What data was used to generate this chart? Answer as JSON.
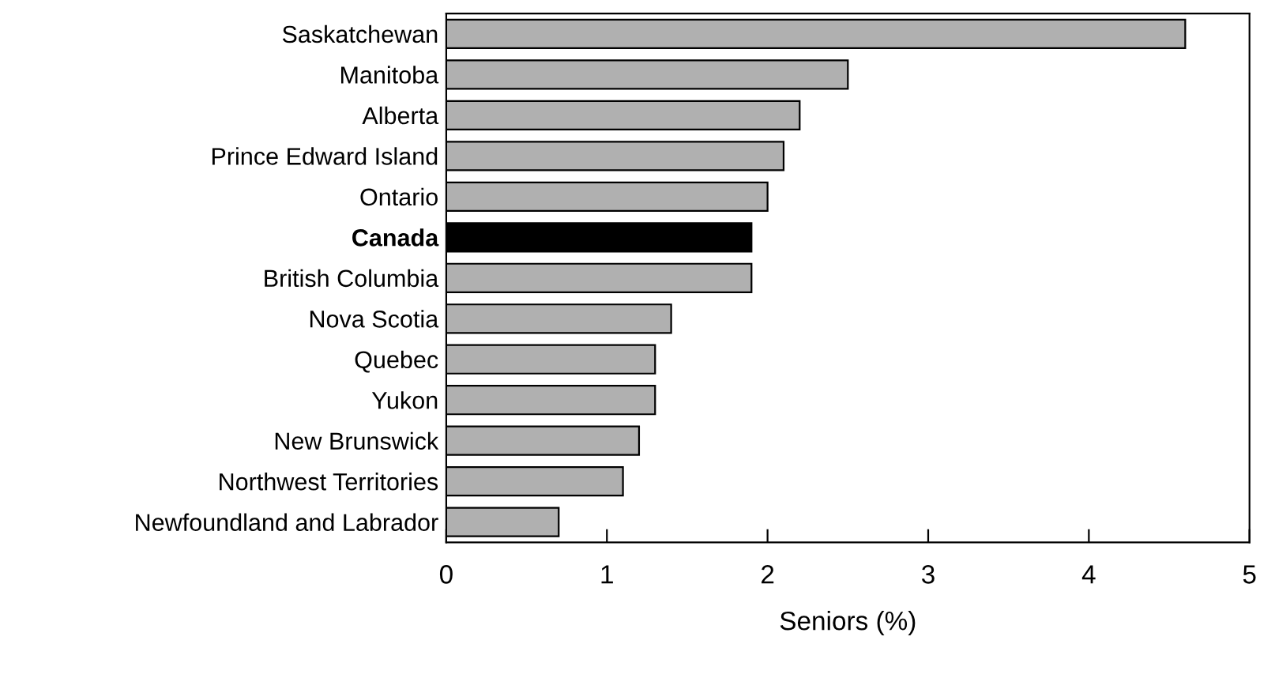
{
  "chart_data": {
    "type": "bar",
    "orientation": "horizontal",
    "xlabel": "Seniors (%)",
    "categories": [
      "Saskatchewan",
      "Manitoba",
      "Alberta",
      "Prince Edward Island",
      "Ontario",
      "Canada",
      "British Columbia",
      "Nova Scotia",
      "Quebec",
      "Yukon",
      "New Brunswick",
      "Northwest Territories",
      "Newfoundland and Labrador"
    ],
    "values": [
      4.6,
      2.5,
      2.2,
      2.1,
      2.0,
      1.9,
      1.9,
      1.4,
      1.3,
      1.3,
      1.2,
      1.1,
      0.7
    ],
    "colors": [
      "#b0b0b0",
      "#b0b0b0",
      "#b0b0b0",
      "#b0b0b0",
      "#b0b0b0",
      "#000000",
      "#b0b0b0",
      "#b0b0b0",
      "#b0b0b0",
      "#b0b0b0",
      "#b0b0b0",
      "#b0b0b0",
      "#b0b0b0"
    ],
    "xlim": [
      0,
      5
    ],
    "xticks": [
      0,
      1,
      2,
      3,
      4,
      5
    ],
    "grid": false
  }
}
